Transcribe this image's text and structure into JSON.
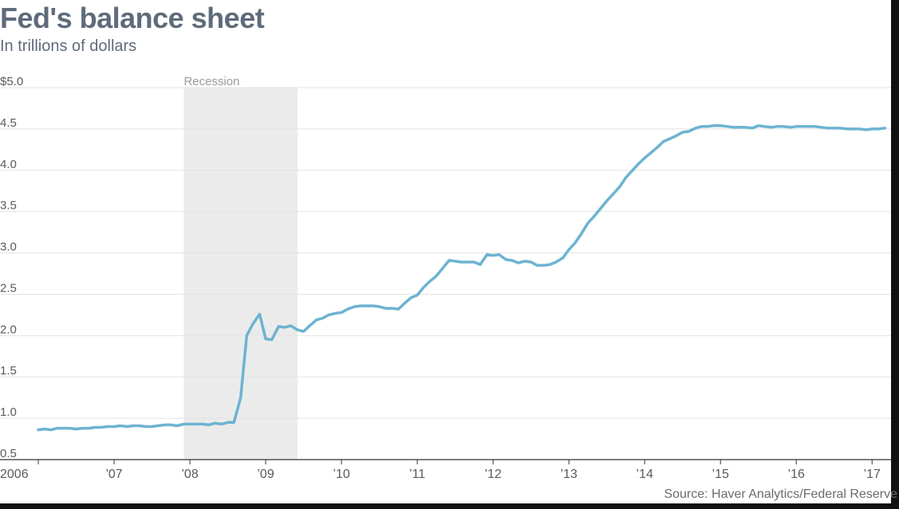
{
  "chart_data": {
    "type": "line",
    "title": "Fed's balance sheet",
    "subtitle": "In trillions of dollars",
    "source": "Source: Haver Analytics/Federal Reserve",
    "ylim": [
      0.5,
      5.0
    ],
    "yticks": [
      0.5,
      1.0,
      1.5,
      2.0,
      2.5,
      3.0,
      3.5,
      4.0,
      4.5,
      5.0
    ],
    "ytick_labels": [
      "0.5",
      "1.0",
      "1.5",
      "2.0",
      "2.5",
      "3.0",
      "3.5",
      "4.0",
      "4.5",
      "$5.0"
    ],
    "xlim": [
      2006.0,
      2017.25
    ],
    "xticks": [
      2006,
      2007,
      2008,
      2009,
      2010,
      2011,
      2012,
      2013,
      2014,
      2015,
      2016,
      2017
    ],
    "xtick_labels": [
      "2006",
      "’07",
      "’08",
      "’09",
      "’10",
      "’11",
      "’12",
      "’13",
      "’14",
      "’15",
      "’16",
      "’17"
    ],
    "grid": true,
    "line_color": "#6db3d1",
    "shade_color": "#ebebeb",
    "recession": {
      "label": "Recession",
      "start": 2007.92,
      "end": 2009.42
    },
    "series": [
      {
        "x": [
          2006.0,
          2006.08,
          2006.17,
          2006.25,
          2006.33,
          2006.42,
          2006.5,
          2006.58,
          2006.67,
          2006.75,
          2006.83,
          2006.92,
          2007.0,
          2007.08,
          2007.17,
          2007.25,
          2007.33,
          2007.42,
          2007.5,
          2007.58,
          2007.67,
          2007.75,
          2007.83,
          2007.92,
          2008.0,
          2008.08,
          2008.17,
          2008.25,
          2008.33,
          2008.42,
          2008.5,
          2008.58,
          2008.67,
          2008.75,
          2008.83,
          2008.92,
          2009.0,
          2009.08,
          2009.17,
          2009.25,
          2009.33,
          2009.42,
          2009.5,
          2009.58,
          2009.67,
          2009.75,
          2009.83,
          2009.92,
          2010.0,
          2010.08,
          2010.17,
          2010.25,
          2010.33,
          2010.42,
          2010.5,
          2010.58,
          2010.67,
          2010.75,
          2010.83,
          2010.92,
          2011.0,
          2011.08,
          2011.17,
          2011.25,
          2011.33,
          2011.42,
          2011.5,
          2011.58,
          2011.67,
          2011.75,
          2011.83,
          2011.92,
          2012.0,
          2012.08,
          2012.17,
          2012.25,
          2012.33,
          2012.42,
          2012.5,
          2012.58,
          2012.67,
          2012.75,
          2012.83,
          2012.92,
          2013.0,
          2013.08,
          2013.17,
          2013.25,
          2013.33,
          2013.42,
          2013.5,
          2013.58,
          2013.67,
          2013.75,
          2013.83,
          2013.92,
          2014.0,
          2014.08,
          2014.17,
          2014.25,
          2014.33,
          2014.42,
          2014.5,
          2014.58,
          2014.67,
          2014.75,
          2014.83,
          2014.92,
          2015.0,
          2015.17,
          2015.33,
          2015.42,
          2015.5,
          2015.58,
          2015.67,
          2015.75,
          2015.83,
          2015.92,
          2016.0,
          2016.08,
          2016.17,
          2016.25,
          2016.33,
          2016.42,
          2016.5,
          2016.58,
          2016.67,
          2016.75,
          2016.83,
          2016.92,
          2017.0,
          2017.08,
          2017.17
        ],
        "values": [
          0.86,
          0.87,
          0.86,
          0.88,
          0.88,
          0.88,
          0.87,
          0.88,
          0.88,
          0.89,
          0.89,
          0.9,
          0.9,
          0.91,
          0.9,
          0.91,
          0.91,
          0.9,
          0.9,
          0.91,
          0.92,
          0.92,
          0.91,
          0.93,
          0.93,
          0.93,
          0.93,
          0.92,
          0.94,
          0.93,
          0.95,
          0.95,
          1.25,
          2.0,
          2.14,
          2.26,
          1.96,
          1.95,
          2.11,
          2.1,
          2.12,
          2.07,
          2.05,
          2.12,
          2.19,
          2.21,
          2.25,
          2.27,
          2.28,
          2.32,
          2.35,
          2.36,
          2.36,
          2.36,
          2.35,
          2.33,
          2.33,
          2.32,
          2.39,
          2.46,
          2.49,
          2.58,
          2.66,
          2.72,
          2.81,
          2.91,
          2.9,
          2.89,
          2.89,
          2.89,
          2.86,
          2.98,
          2.97,
          2.98,
          2.92,
          2.91,
          2.88,
          2.9,
          2.89,
          2.85,
          2.85,
          2.86,
          2.89,
          2.94,
          3.04,
          3.12,
          3.24,
          3.36,
          3.44,
          3.54,
          3.63,
          3.71,
          3.8,
          3.91,
          3.99,
          4.08,
          4.15,
          4.21,
          4.28,
          4.35,
          4.38,
          4.42,
          4.46,
          4.47,
          4.51,
          4.53,
          4.53,
          4.54,
          4.54,
          4.52,
          4.52,
          4.51,
          4.54,
          4.53,
          4.52,
          4.53,
          4.53,
          4.52,
          4.53,
          4.53,
          4.53,
          4.53,
          4.52,
          4.51,
          4.51,
          4.51,
          4.5,
          4.5,
          4.5,
          4.49,
          4.5,
          4.5,
          4.51
        ]
      }
    ]
  }
}
